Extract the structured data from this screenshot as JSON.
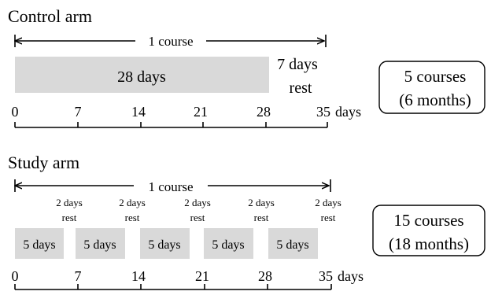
{
  "colors": {
    "bar_fill": "#d9d9d9",
    "ink": "#000000"
  },
  "control": {
    "title": "Control arm",
    "course_label": "1 course",
    "bar_label": "28 days",
    "rest_line1": "7 days",
    "rest_line2": "rest",
    "ticks": [
      "0",
      "7",
      "14",
      "21",
      "28",
      "35"
    ],
    "axis_unit": "days",
    "summary_line1": "5 courses",
    "summary_line2": "(6 months)"
  },
  "study": {
    "title": "Study arm",
    "course_label": "1 course",
    "rests": [
      {
        "line1": "2 days",
        "line2": "rest"
      },
      {
        "line1": "2 days",
        "line2": "rest"
      },
      {
        "line1": "2 days",
        "line2": "rest"
      },
      {
        "line1": "2 days",
        "line2": "rest"
      },
      {
        "line1": "2 days",
        "line2": "rest"
      }
    ],
    "blocks": [
      "5 days",
      "5 days",
      "5 days",
      "5 days",
      "5 days"
    ],
    "ticks": [
      "0",
      "7",
      "14",
      "21",
      "28",
      "35"
    ],
    "axis_unit": "days",
    "summary_line1": "15 courses",
    "summary_line2": "(18 months)"
  }
}
